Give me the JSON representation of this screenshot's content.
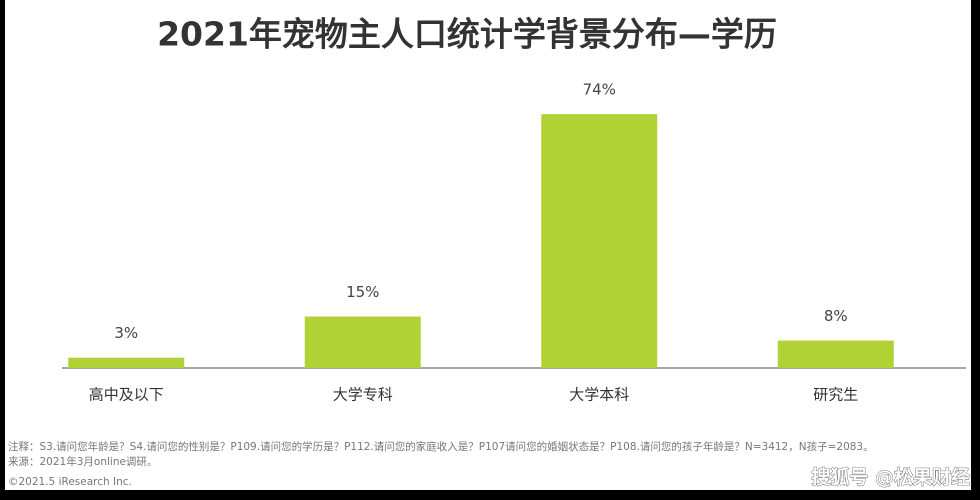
{
  "chart_data": {
    "type": "bar",
    "title": "2021年宠物主人口统计学背景分布—学历",
    "categories": [
      "高中及以下",
      "大学专科",
      "大学本科",
      "研究生"
    ],
    "values": [
      3,
      15,
      74,
      8
    ],
    "value_labels": [
      "3%",
      "15%",
      "74%",
      "8%"
    ],
    "color": "#b1d235",
    "note": "注释：S3.请问您年龄是？S4.请问您的性别是？P109.请问您的学历是？P112.请问您的家庭收入是？P107请问您的婚姻状态是？P108.请问您的孩子年龄是？N=3412，N孩子=2083。",
    "source": "来源：2021年3月online调研。",
    "copyright": "©2021.5 iResearch Inc.",
    "watermark": "搜狐号 @松果财经"
  }
}
